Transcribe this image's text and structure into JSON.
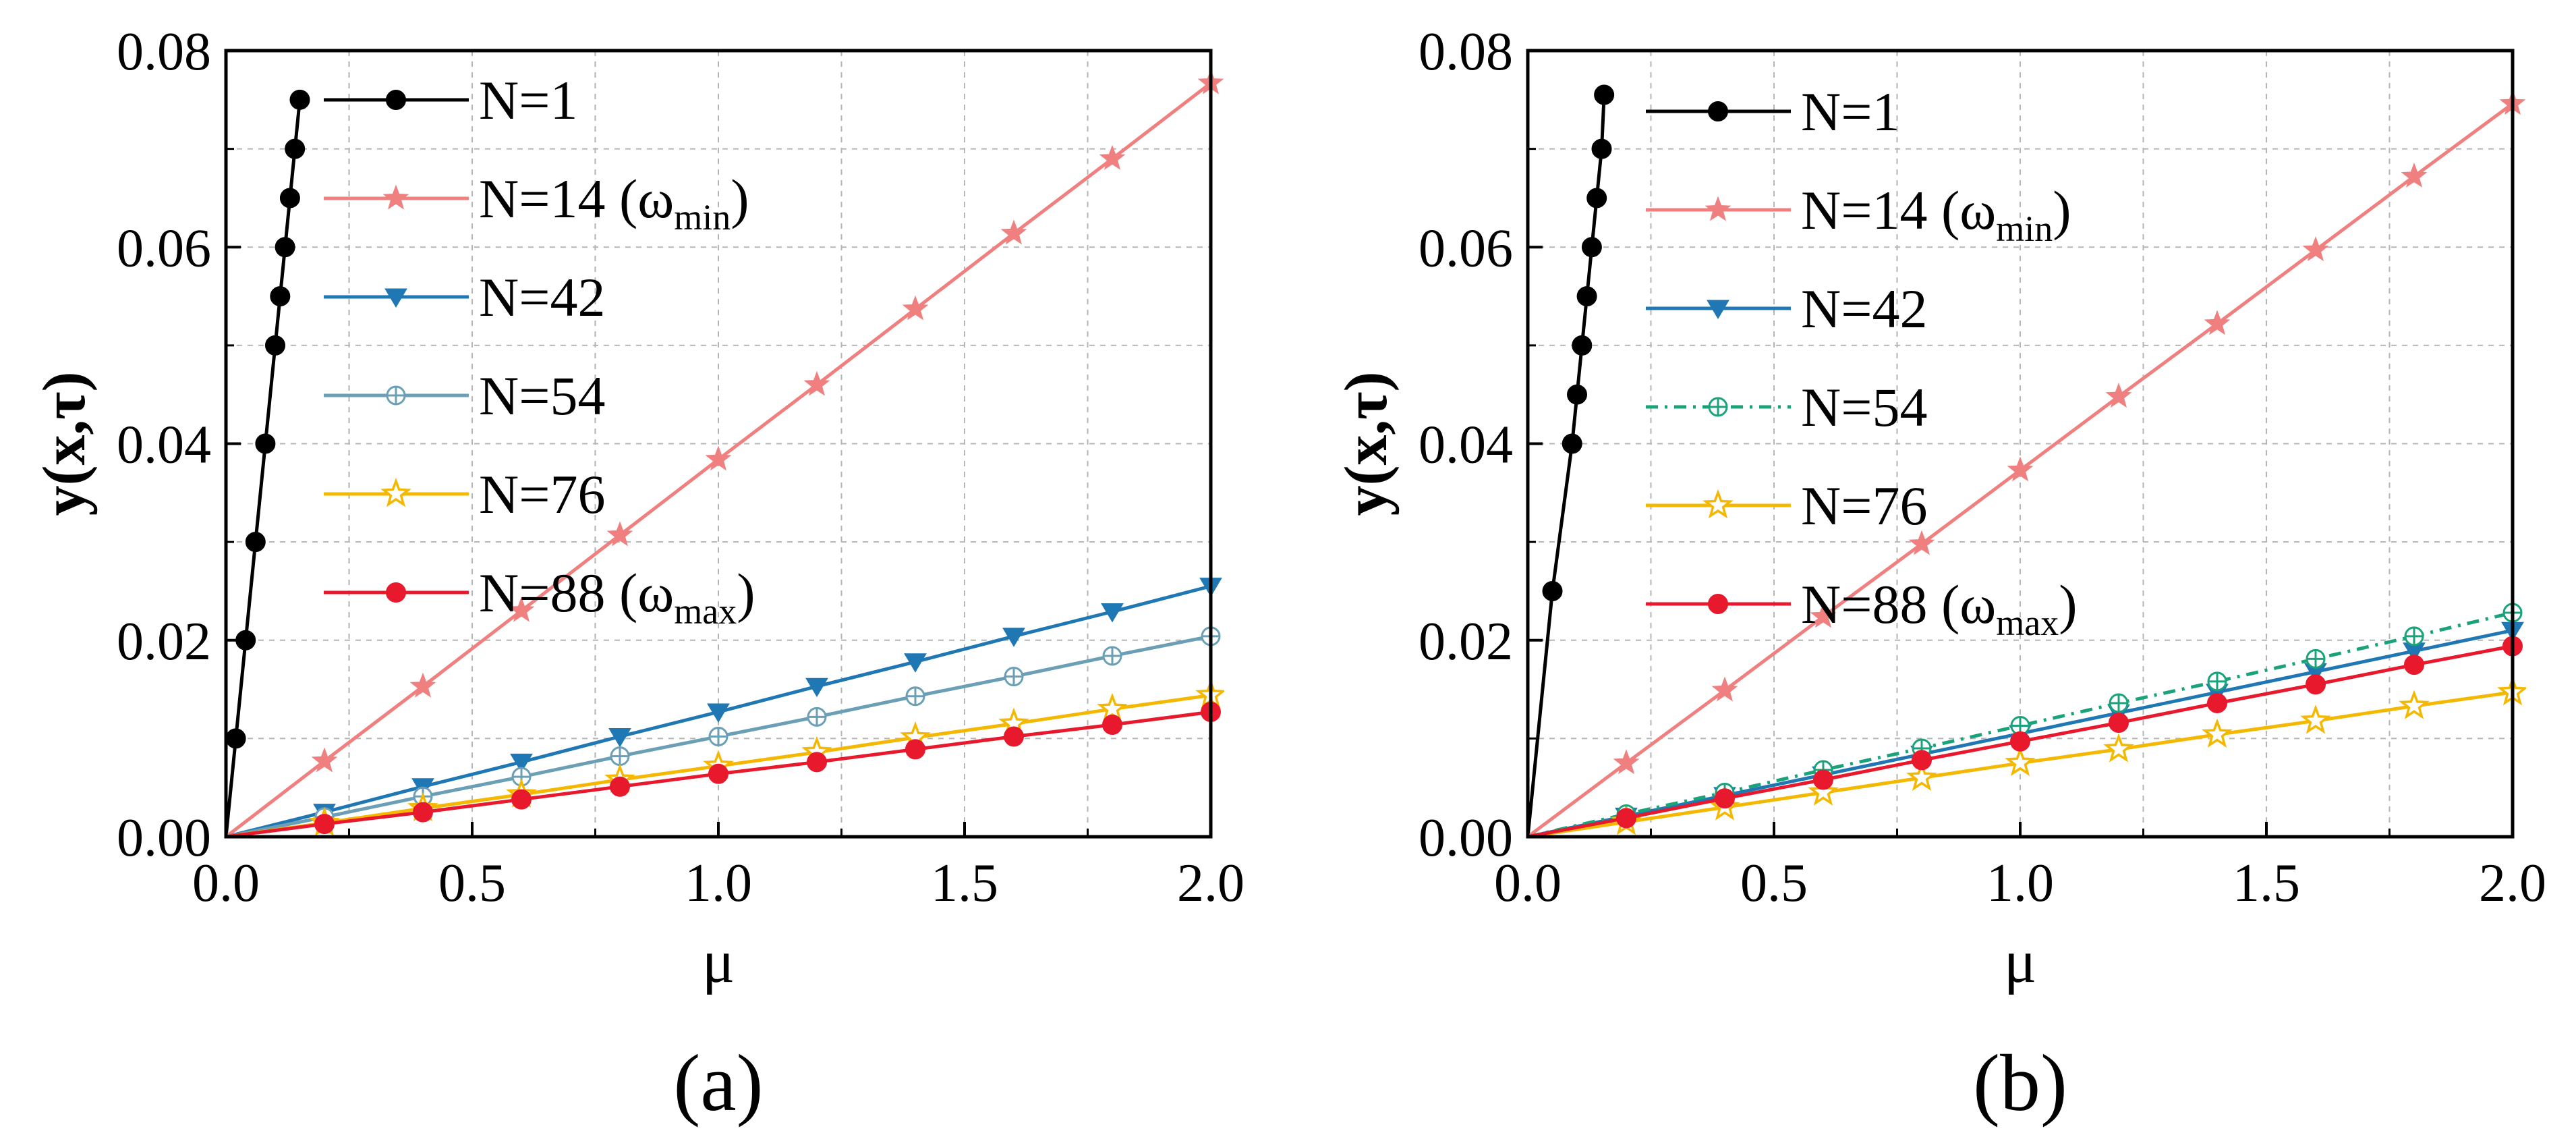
{
  "chart_data": [
    {
      "type": "line",
      "panel_label": "(a)",
      "xlabel": "μ",
      "ylabel": "y(x,τ)",
      "xlim": [
        0,
        2
      ],
      "ylim": [
        0,
        0.08
      ],
      "xticks": [
        "0.0",
        "0.5",
        "1.0",
        "1.5",
        "2.0"
      ],
      "yticks": [
        "0.00",
        "0.02",
        "0.04",
        "0.06",
        "0.08"
      ],
      "grid": true,
      "legend_position": "top-left",
      "series": [
        {
          "name": "N=1",
          "sub": "",
          "color": "#000000",
          "marker": "circle-filled",
          "dash": "",
          "x": [
            0,
            0.02,
            0.04,
            0.06,
            0.08,
            0.1,
            0.11,
            0.12,
            0.13,
            0.14,
            0.15
          ],
          "y": [
            0,
            0.01,
            0.02,
            0.03,
            0.04,
            0.05,
            0.055,
            0.06,
            0.065,
            0.07,
            0.075
          ]
        },
        {
          "name": "N=14 (ω",
          "sub": "min",
          "color": "#f08080",
          "marker": "star-filled",
          "dash": "",
          "x": [
            0,
            0.2,
            0.4,
            0.6,
            0.8,
            1.0,
            1.2,
            1.4,
            1.6,
            1.8,
            2.0
          ],
          "y": [
            0,
            0.0077,
            0.0153,
            0.023,
            0.0307,
            0.0384,
            0.046,
            0.0537,
            0.0614,
            0.069,
            0.0767
          ]
        },
        {
          "name": "N=42",
          "sub": "",
          "color": "#1f77b4",
          "marker": "triangle-down-filled",
          "dash": "",
          "x": [
            0,
            0.2,
            0.4,
            0.6,
            0.8,
            1.0,
            1.2,
            1.4,
            1.6,
            1.8,
            2.0
          ],
          "y": [
            0,
            0.0025,
            0.0051,
            0.0076,
            0.0102,
            0.0127,
            0.0153,
            0.0178,
            0.0204,
            0.0229,
            0.0255
          ]
        },
        {
          "name": "N=54",
          "sub": "",
          "color": "#6a9fb5",
          "marker": "circle-plus",
          "dash": "",
          "x": [
            0,
            0.2,
            0.4,
            0.6,
            0.8,
            1.0,
            1.2,
            1.4,
            1.6,
            1.8,
            2.0
          ],
          "y": [
            0,
            0.002,
            0.0041,
            0.0061,
            0.0082,
            0.0102,
            0.0122,
            0.0143,
            0.0163,
            0.0184,
            0.0204
          ]
        },
        {
          "name": "N=76",
          "sub": "",
          "color": "#f5b800",
          "marker": "star-open",
          "dash": "",
          "x": [
            0,
            0.2,
            0.4,
            0.6,
            0.8,
            1.0,
            1.2,
            1.4,
            1.6,
            1.8,
            2.0
          ],
          "y": [
            0,
            0.0014,
            0.0029,
            0.0043,
            0.0058,
            0.0072,
            0.0086,
            0.0101,
            0.0115,
            0.013,
            0.0144
          ]
        },
        {
          "name": "N=88  (ω",
          "sub": "max",
          "color": "#e8192c",
          "marker": "circle-filled",
          "dash": "",
          "x": [
            0,
            0.2,
            0.4,
            0.6,
            0.8,
            1.0,
            1.2,
            1.4,
            1.6,
            1.8,
            2.0
          ],
          "y": [
            0,
            0.0013,
            0.0025,
            0.0038,
            0.0051,
            0.0064,
            0.0076,
            0.0089,
            0.0102,
            0.0114,
            0.0127
          ]
        }
      ]
    },
    {
      "type": "line",
      "panel_label": "(b)",
      "xlabel": "μ",
      "ylabel": "y(x,τ)",
      "xlim": [
        0,
        2
      ],
      "ylim": [
        0,
        0.08
      ],
      "xticks": [
        "0.0",
        "0.5",
        "1.0",
        "1.5",
        "2.0"
      ],
      "yticks": [
        "0.00",
        "0.02",
        "0.04",
        "0.06",
        "0.08"
      ],
      "grid": true,
      "legend_position": "top-left",
      "series": [
        {
          "name": "N=1",
          "sub": "",
          "color": "#000000",
          "marker": "circle-filled",
          "dash": "",
          "x": [
            0,
            0.05,
            0.09,
            0.1,
            0.11,
            0.12,
            0.13,
            0.14,
            0.15,
            0.155
          ],
          "y": [
            0,
            0.025,
            0.04,
            0.045,
            0.05,
            0.055,
            0.06,
            0.065,
            0.07,
            0.0755
          ]
        },
        {
          "name": "N=14 (ω",
          "sub": "min",
          "color": "#f08080",
          "marker": "star-filled",
          "dash": "",
          "x": [
            0,
            0.2,
            0.4,
            0.6,
            0.8,
            1.0,
            1.2,
            1.4,
            1.6,
            1.8,
            2.0
          ],
          "y": [
            0,
            0.0075,
            0.0149,
            0.0224,
            0.0298,
            0.0373,
            0.0448,
            0.0522,
            0.0597,
            0.0672,
            0.0746
          ]
        },
        {
          "name": "N=42",
          "sub": "",
          "color": "#1f77b4",
          "marker": "triangle-down-filled",
          "dash": "",
          "x": [
            0,
            0.2,
            0.4,
            0.6,
            0.8,
            1.0,
            1.2,
            1.4,
            1.6,
            1.8,
            2.0
          ],
          "y": [
            0,
            0.0021,
            0.0042,
            0.0063,
            0.0084,
            0.0105,
            0.0126,
            0.0147,
            0.0168,
            0.0189,
            0.021
          ]
        },
        {
          "name": "N=54",
          "sub": "",
          "color": "#1aa37a",
          "marker": "circle-plus",
          "dash": "18,10,4,10",
          "x": [
            0,
            0.2,
            0.4,
            0.6,
            0.8,
            1.0,
            1.2,
            1.4,
            1.6,
            1.8,
            2.0
          ],
          "y": [
            0,
            0.0023,
            0.0045,
            0.0068,
            0.009,
            0.0113,
            0.0136,
            0.0158,
            0.0181,
            0.0204,
            0.0228
          ]
        },
        {
          "name": "N=76",
          "sub": "",
          "color": "#f5b800",
          "marker": "star-open",
          "dash": "",
          "x": [
            0,
            0.2,
            0.4,
            0.6,
            0.8,
            1.0,
            1.2,
            1.4,
            1.6,
            1.8,
            2.0
          ],
          "y": [
            0,
            0.0015,
            0.003,
            0.0045,
            0.006,
            0.0075,
            0.0089,
            0.0104,
            0.0118,
            0.0133,
            0.0147
          ]
        },
        {
          "name": "N=88 (ω",
          "sub": "max",
          "color": "#e8192c",
          "marker": "circle-filled",
          "dash": "",
          "x": [
            0,
            0.2,
            0.4,
            0.6,
            0.8,
            1.0,
            1.2,
            1.4,
            1.6,
            1.8,
            2.0
          ],
          "y": [
            0,
            0.0019,
            0.0039,
            0.0058,
            0.0078,
            0.0097,
            0.0116,
            0.0136,
            0.0155,
            0.0175,
            0.0194
          ]
        }
      ]
    }
  ]
}
